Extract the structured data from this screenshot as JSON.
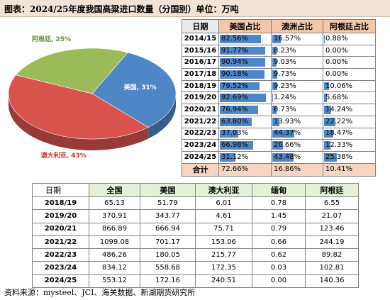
{
  "title": "图表：2024/25年度我国高粱进口数量（分国别）单位：万吨",
  "source": "资料来源：mysteel、JCI、海关数据、新湖期货研究所",
  "colors": {
    "us": "#4f86c6",
    "au": "#d9534f",
    "ar": "#9bbb59"
  },
  "chart_data": [
    {
      "type": "pie",
      "title": "",
      "slices": [
        {
          "label": "美国",
          "value": 31,
          "display": "美国, 31%",
          "color": "#4f86c6"
        },
        {
          "label": "澳大利亚",
          "value": 43,
          "display": "澳大利亚, 43%",
          "color": "#d9534f"
        },
        {
          "label": "阿根廷",
          "value": 25,
          "display": "阿根廷, 25%",
          "color": "#9bbb59"
        }
      ]
    },
    {
      "type": "table",
      "headers": [
        "日期",
        "美国占比",
        "澳洲占比",
        "阿根廷占比"
      ],
      "rows": [
        {
          "label": "2014/15",
          "values": [
            82.56,
            16.57,
            0.88
          ],
          "display": [
            "82.56%",
            "16.57%",
            "0.88%"
          ]
        },
        {
          "label": "2015/16",
          "values": [
            91.77,
            8.23,
            0.0
          ],
          "display": [
            "91.77%",
            "8.23%",
            "0.00%"
          ]
        },
        {
          "label": "2016/17",
          "values": [
            90.94,
            9.03,
            0.0
          ],
          "display": [
            "90.94%",
            "9.03%",
            "0.00%"
          ]
        },
        {
          "label": "2017/18",
          "values": [
            90.18,
            9.73,
            0.0
          ],
          "display": [
            "90.18%",
            "9.73%",
            "0.00%"
          ]
        },
        {
          "label": "2018/19",
          "values": [
            79.52,
            9.23,
            10.06
          ],
          "display": [
            "79.52%",
            "9.23%",
            "10.06%"
          ]
        },
        {
          "label": "2019/20",
          "values": [
            92.69,
            1.24,
            5.68
          ],
          "display": [
            "92.69%",
            "1.24%",
            "5.68%"
          ]
        },
        {
          "label": "2020/21",
          "values": [
            76.94,
            8.73,
            14.24
          ],
          "display": [
            "76.94%",
            "8.73%",
            "14.24%"
          ]
        },
        {
          "label": "2021/22",
          "values": [
            63.8,
            13.93,
            22.22
          ],
          "display": [
            "63.80%",
            "13.93%",
            "22.22%"
          ]
        },
        {
          "label": "2022/23",
          "values": [
            37.03,
            44.37,
            18.47
          ],
          "display": [
            "37.03%",
            "44.37%",
            "18.47%"
          ]
        },
        {
          "label": "2023/24",
          "values": [
            66.98,
            20.66,
            12.33
          ],
          "display": [
            "66.98%",
            "20.66%",
            "12.33%"
          ]
        },
        {
          "label": "2024/25",
          "values": [
            31.12,
            43.48,
            25.38
          ],
          "display": [
            "31.12%",
            "43.48%",
            "25.38%"
          ]
        }
      ],
      "total": {
        "label": "合计",
        "values": [
          72.66,
          16.86,
          10.41
        ],
        "display": [
          "72.66%",
          "16.86%",
          "10.41%"
        ]
      }
    },
    {
      "type": "table",
      "headers": [
        "日期",
        "全国",
        "美国",
        "澳大利亚",
        "缅甸",
        "阿根廷"
      ],
      "rows": [
        {
          "label": "2018/19",
          "values": [
            "65.13",
            "51.79",
            "6.01",
            "0.78",
            "6.55"
          ]
        },
        {
          "label": "2019/20",
          "values": [
            "370.91",
            "343.77",
            "4.61",
            "1.45",
            "21.07"
          ]
        },
        {
          "label": "2020/21",
          "values": [
            "866.89",
            "666.94",
            "75.71",
            "0.79",
            "123.46"
          ]
        },
        {
          "label": "2021/22",
          "values": [
            "1099.08",
            "701.17",
            "153.06",
            "0.66",
            "244.19"
          ]
        },
        {
          "label": "2022/23",
          "values": [
            "486.26",
            "180.05",
            "215.77",
            "0.62",
            "89.82"
          ]
        },
        {
          "label": "2023/24",
          "values": [
            "834.12",
            "558.68",
            "172.35",
            "0.03",
            "102.81"
          ]
        },
        {
          "label": "2024/25",
          "values": [
            "553.12",
            "172.16",
            "240.51",
            "0.00",
            "140.36"
          ]
        }
      ]
    }
  ]
}
